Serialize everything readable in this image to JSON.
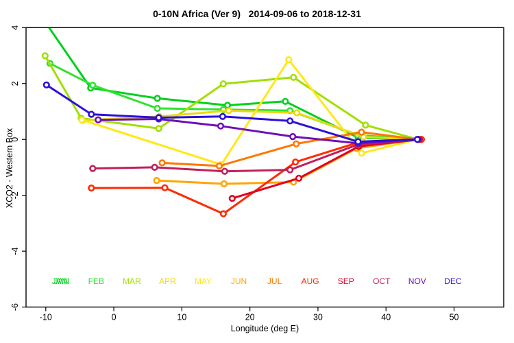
{
  "chart_data": {
    "type": "line",
    "title": "0-10N Africa (Ver 9)   2014-09-06 to 2018-12-31",
    "xlabel": "Longitude (deg E)",
    "ylabel": "XCO2 - Western Box",
    "xlim": [
      -12.9,
      57.3
    ],
    "ylim": [
      -6,
      4
    ],
    "x_ticks": [
      -10,
      0,
      10,
      20,
      30,
      40,
      50
    ],
    "y_ticks": [
      4,
      2,
      0,
      -2,
      -4,
      -6
    ],
    "grid": false,
    "marker": "open-circle",
    "legend_position": "inside-bottom",
    "series": [
      {
        "name": "JAN",
        "color": "#00D01C",
        "double_printed_label": true,
        "points": [
          [
            -10.5,
            4.35
          ],
          [
            -3.4,
            1.84
          ],
          [
            6.4,
            1.47
          ],
          [
            16.7,
            1.22
          ],
          [
            25.2,
            1.36
          ],
          [
            35.9,
            0.06
          ],
          [
            44.7,
            0.0
          ]
        ]
      },
      {
        "name": "FEB",
        "color": "#2FE32F",
        "points": [
          [
            -9.4,
            2.72
          ],
          [
            -3.1,
            1.94
          ],
          [
            6.4,
            1.11
          ],
          [
            16.1,
            1.07
          ],
          [
            25.9,
            1.03
          ],
          [
            35.8,
            0.16
          ],
          [
            44.7,
            0.0
          ]
        ]
      },
      {
        "name": "MAR",
        "color": "#9FE000",
        "points": [
          [
            -10.1,
            2.99
          ],
          [
            -4.8,
            0.76
          ],
          [
            6.6,
            0.39
          ],
          [
            16.1,
            1.99
          ],
          [
            26.4,
            2.22
          ],
          [
            37.0,
            0.51
          ],
          [
            44.7,
            0.0
          ]
        ]
      },
      {
        "name": "APR",
        "color": "#EDD812",
        "points": [
          [
            -4.6,
            0.68
          ],
          [
            6.7,
            0.82
          ],
          [
            16.9,
            1.03
          ],
          [
            26.9,
            0.95
          ],
          [
            36.7,
            0.09
          ],
          [
            44.7,
            0.0
          ]
        ]
      },
      {
        "name": "MAY",
        "color": "#FFE818",
        "points": [
          [
            -4.7,
            0.7
          ],
          [
            15.8,
            -0.9
          ],
          [
            25.7,
            2.85
          ],
          [
            36.4,
            -0.49
          ],
          [
            44.7,
            0.0
          ]
        ]
      },
      {
        "name": "JUN",
        "color": "#FFA400",
        "points": [
          [
            6.3,
            -1.47
          ],
          [
            16.2,
            -1.59
          ],
          [
            26.4,
            -1.53
          ],
          [
            35.7,
            -0.32
          ],
          [
            44.7,
            0.0
          ]
        ]
      },
      {
        "name": "JUL",
        "color": "#FF7700",
        "points": [
          [
            7.1,
            -0.84
          ],
          [
            15.5,
            -0.95
          ],
          [
            26.8,
            -0.16
          ],
          [
            36.4,
            0.26
          ],
          [
            44.7,
            0.0
          ]
        ]
      },
      {
        "name": "AUG",
        "color": "#FF2A00",
        "points": [
          [
            -3.3,
            -1.74
          ],
          [
            7.5,
            -1.73
          ],
          [
            16.1,
            -2.66
          ],
          [
            26.7,
            -0.81
          ],
          [
            35.8,
            -0.12
          ],
          [
            45.2,
            0.0
          ]
        ]
      },
      {
        "name": "SEP",
        "color": "#E00022",
        "points": [
          [
            17.4,
            -2.11
          ],
          [
            27.2,
            -1.39
          ],
          [
            36.0,
            -0.25
          ],
          [
            44.9,
            0.0
          ]
        ]
      },
      {
        "name": "OCT",
        "color": "#C21E5C",
        "points": [
          [
            -3.1,
            -1.04
          ],
          [
            6.0,
            -1.0
          ],
          [
            16.3,
            -1.14
          ],
          [
            25.9,
            -1.09
          ],
          [
            35.9,
            -0.18
          ],
          [
            44.7,
            0.0
          ]
        ]
      },
      {
        "name": "NOV",
        "color": "#6E10B8",
        "points": [
          [
            -2.3,
            0.7
          ],
          [
            6.6,
            0.73
          ],
          [
            15.7,
            0.48
          ],
          [
            26.3,
            0.1
          ],
          [
            35.9,
            -0.14
          ],
          [
            44.7,
            0.0
          ]
        ]
      },
      {
        "name": "DEC",
        "color": "#2B10D9",
        "points": [
          [
            -9.9,
            1.95
          ],
          [
            -3.3,
            0.9
          ],
          [
            6.6,
            0.78
          ],
          [
            16.0,
            0.82
          ],
          [
            25.9,
            0.66
          ],
          [
            35.9,
            -0.08
          ],
          [
            44.6,
            0.0
          ]
        ]
      }
    ]
  }
}
